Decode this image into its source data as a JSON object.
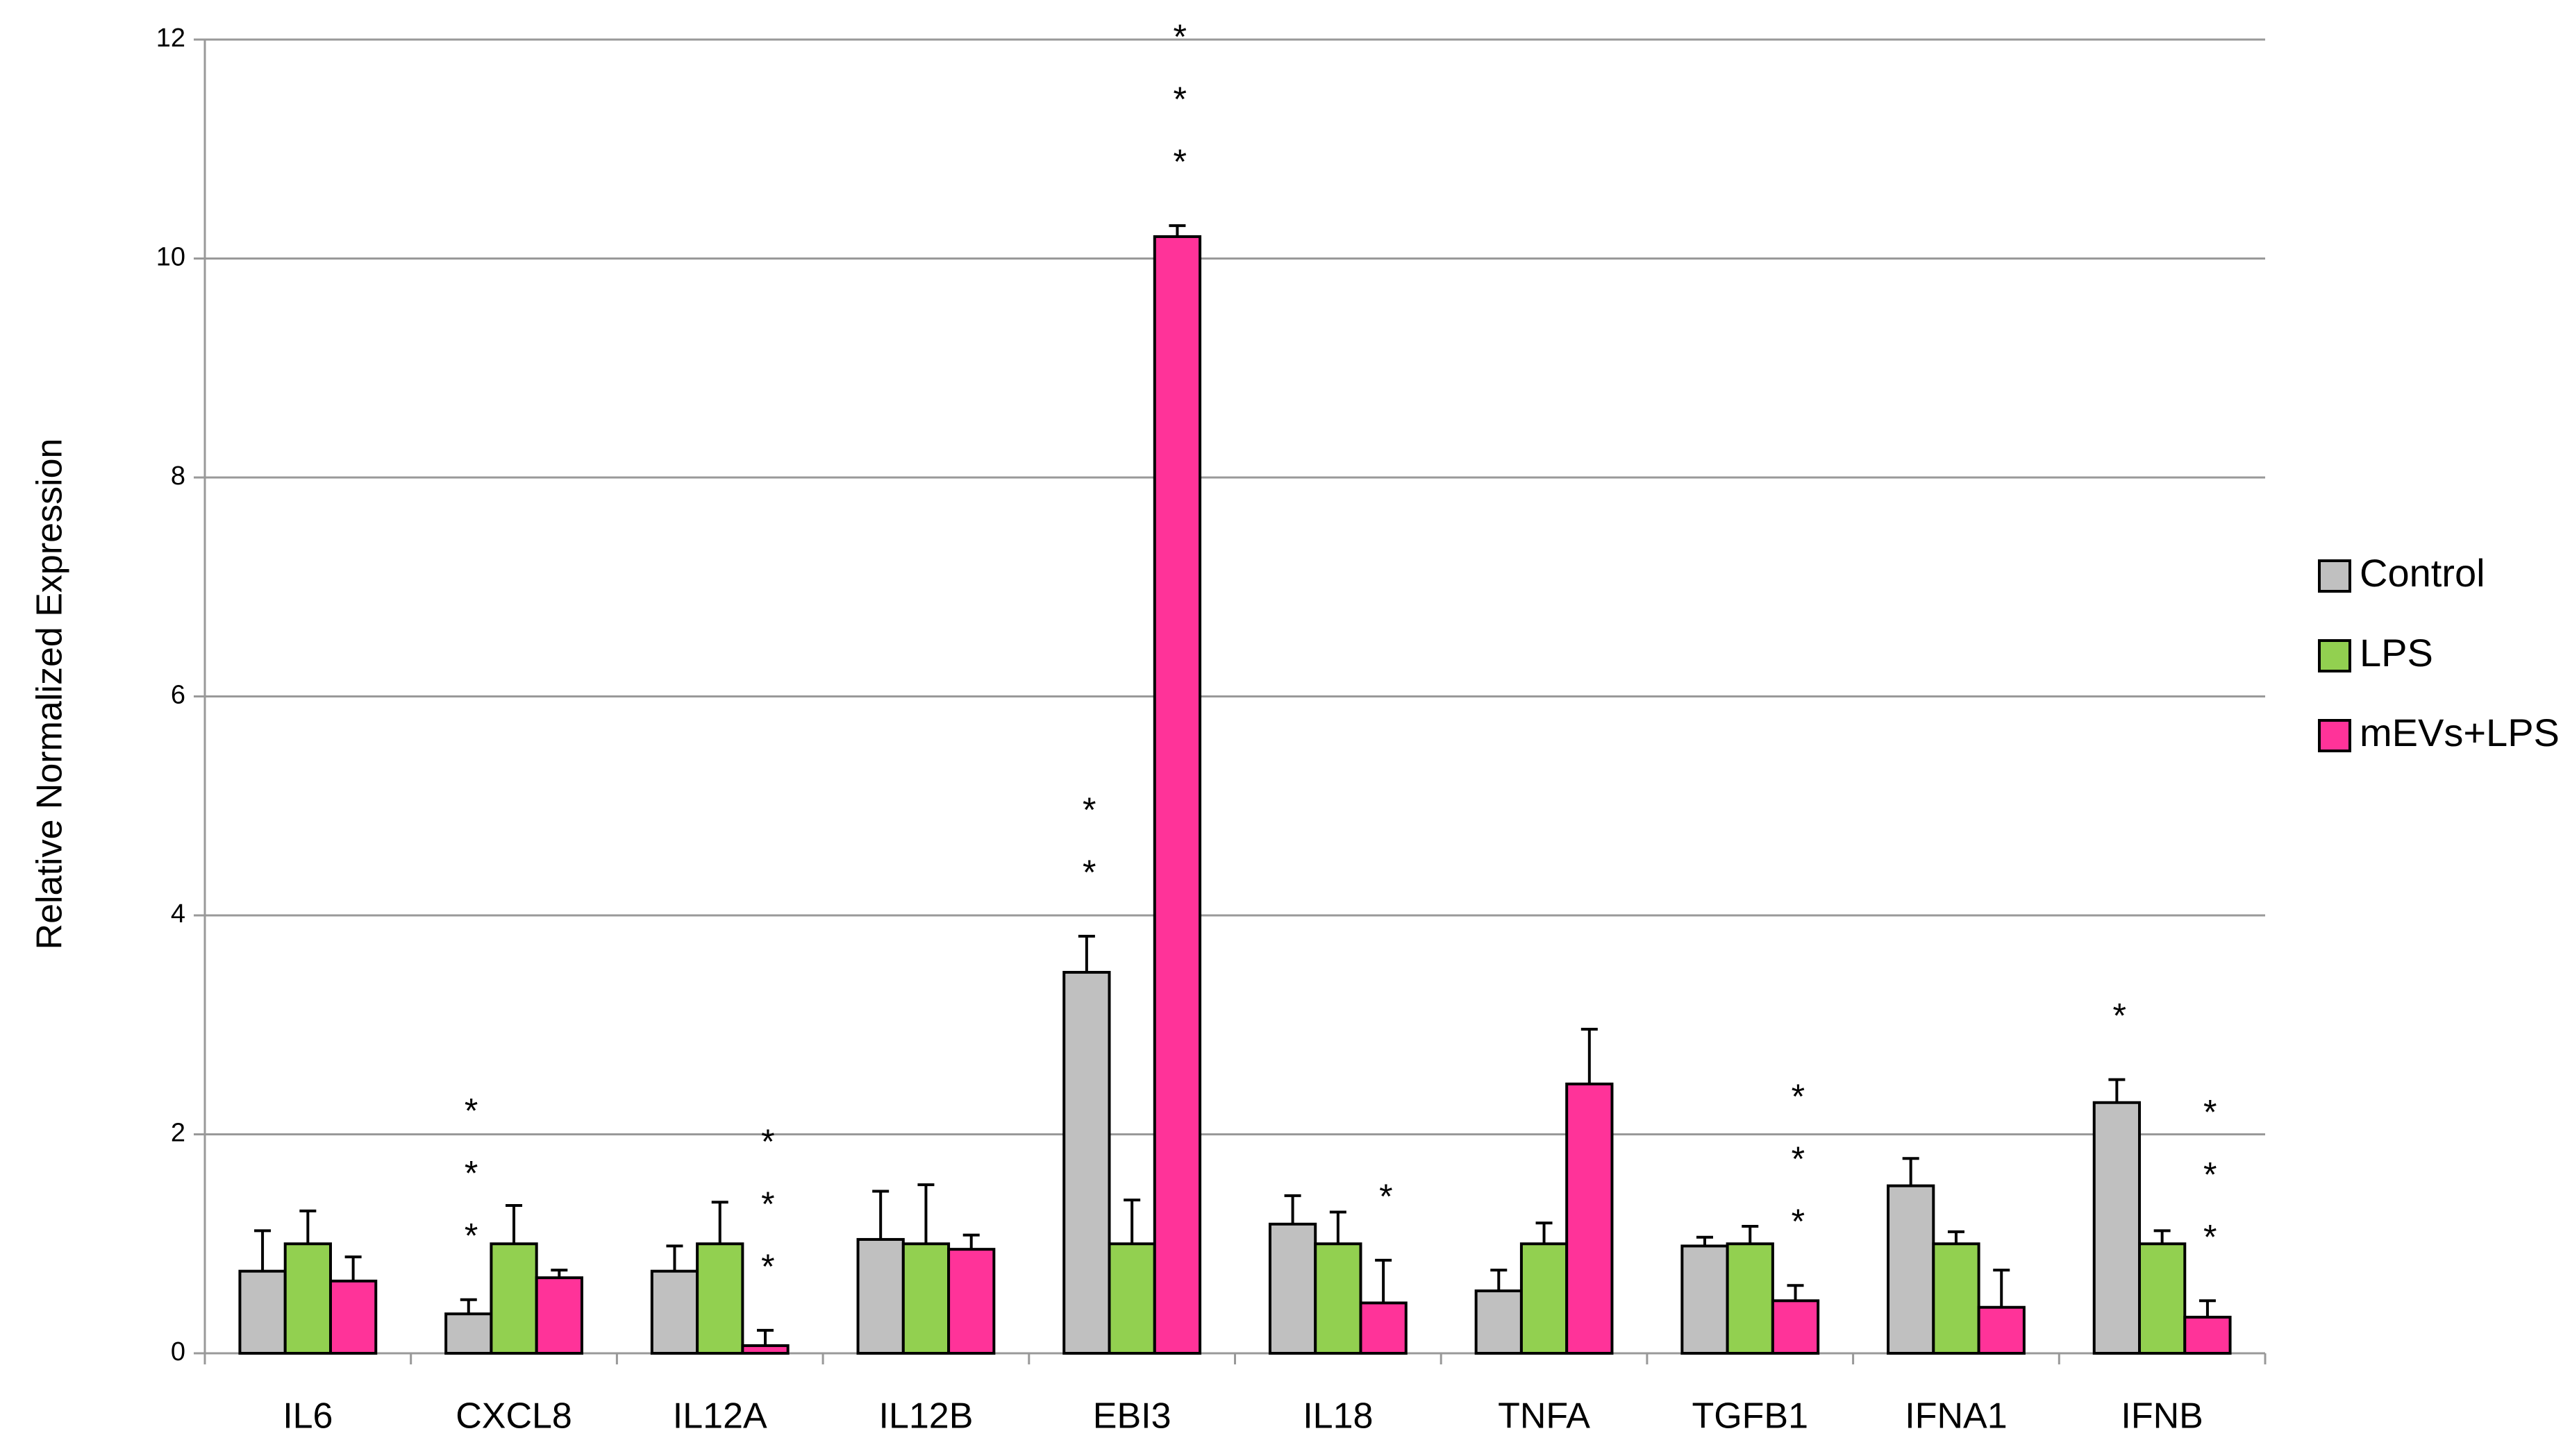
{
  "chart_data": {
    "type": "bar",
    "y_label": "Relative Normalized Expression",
    "categories": [
      "IL6",
      "CXCL8",
      "IL12A",
      "IL12B",
      "EBI3",
      "IL18",
      "TNFA",
      "TGFB1",
      "IFNA1",
      "IFNB"
    ],
    "series": [
      {
        "name": "Control",
        "color": "#c0c0c0",
        "values": [
          0.75,
          0.36,
          0.75,
          1.04,
          3.48,
          1.18,
          0.57,
          0.98,
          1.53,
          2.29
        ],
        "errors": [
          0.37,
          0.13,
          0.23,
          0.44,
          0.33,
          0.26,
          0.19,
          0.08,
          0.25,
          0.21
        ],
        "significance": [
          null,
          "***",
          null,
          null,
          "**",
          null,
          null,
          null,
          null,
          "*"
        ]
      },
      {
        "name": "LPS",
        "color": "#92d050",
        "values": [
          1,
          1,
          1,
          1,
          1,
          1,
          1,
          1,
          1,
          1
        ],
        "errors": [
          0.3,
          0.35,
          0.38,
          0.54,
          0.4,
          0.29,
          0.19,
          0.16,
          0.11,
          0.12
        ],
        "significance": [
          null,
          null,
          null,
          null,
          null,
          null,
          null,
          null,
          null,
          null
        ]
      },
      {
        "name": "mEVs+LPS",
        "color": "#ff3399",
        "values": [
          0.66,
          0.69,
          0.07,
          0.95,
          10.2,
          0.46,
          2.46,
          0.48,
          0.42,
          0.33
        ],
        "errors": [
          0.22,
          0.07,
          0.14,
          0.13,
          0.1,
          0.39,
          0.5,
          0.14,
          0.34,
          0.15
        ],
        "significance": [
          null,
          null,
          "***",
          null,
          "***",
          "*",
          null,
          "***",
          null,
          "***"
        ]
      }
    ],
    "ylim": [
      0,
      12
    ],
    "yticks": [
      0,
      2,
      4,
      6,
      8,
      10,
      12
    ],
    "grid": true,
    "legend": "right"
  }
}
